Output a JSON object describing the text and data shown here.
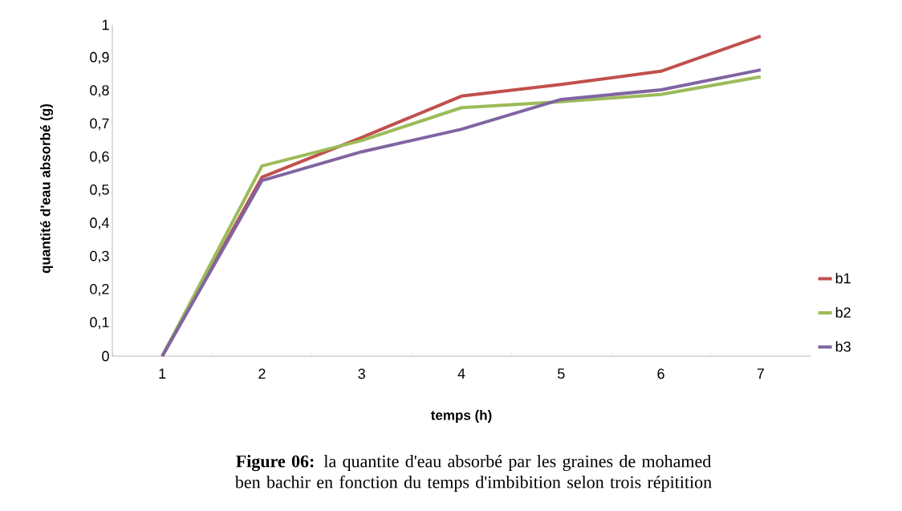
{
  "chart_data": {
    "type": "line",
    "categories": [
      "1",
      "2",
      "3",
      "4",
      "5",
      "6",
      "7"
    ],
    "xlabel": "temps (h)",
    "ylabel": "quantité d'eau absorbé (g)",
    "ylim": [
      0,
      1
    ],
    "yticks": [
      0,
      {
        "value": 0.1,
        "label": "0,1"
      },
      {
        "value": 0.2,
        "label": "0,2"
      },
      {
        "value": 0.3,
        "label": "0,3"
      },
      {
        "value": 0.4,
        "label": "0,4"
      },
      {
        "value": 0.5,
        "label": "0,5"
      },
      {
        "value": 0.6,
        "label": "0,6"
      },
      {
        "value": 0.7,
        "label": "0,7"
      },
      {
        "value": 0.8,
        "label": "0,8"
      },
      {
        "value": 0.9,
        "label": "0,9"
      },
      1
    ],
    "series": [
      {
        "name": "b1",
        "color": "#c0504d",
        "values": [
          0,
          0.54,
          0.66,
          0.785,
          0.82,
          0.86,
          0.966
        ]
      },
      {
        "name": "b2",
        "color": "#9bbb59",
        "values": [
          0,
          0.574,
          0.651,
          0.75,
          0.768,
          0.79,
          0.843
        ]
      },
      {
        "name": "b3",
        "color": "#8064a2",
        "values": [
          0,
          0.53,
          0.617,
          0.685,
          0.775,
          0.804,
          0.864
        ]
      }
    ],
    "legend": "right",
    "grid": false,
    "marker": "none",
    "line_style": "solid",
    "annotations": [
      "**Figure 06:** la quantite d'eau absorbé par les graines de mohamed ben bachir en fonction du temps d'imbibition selon trois répitition"
    ]
  }
}
